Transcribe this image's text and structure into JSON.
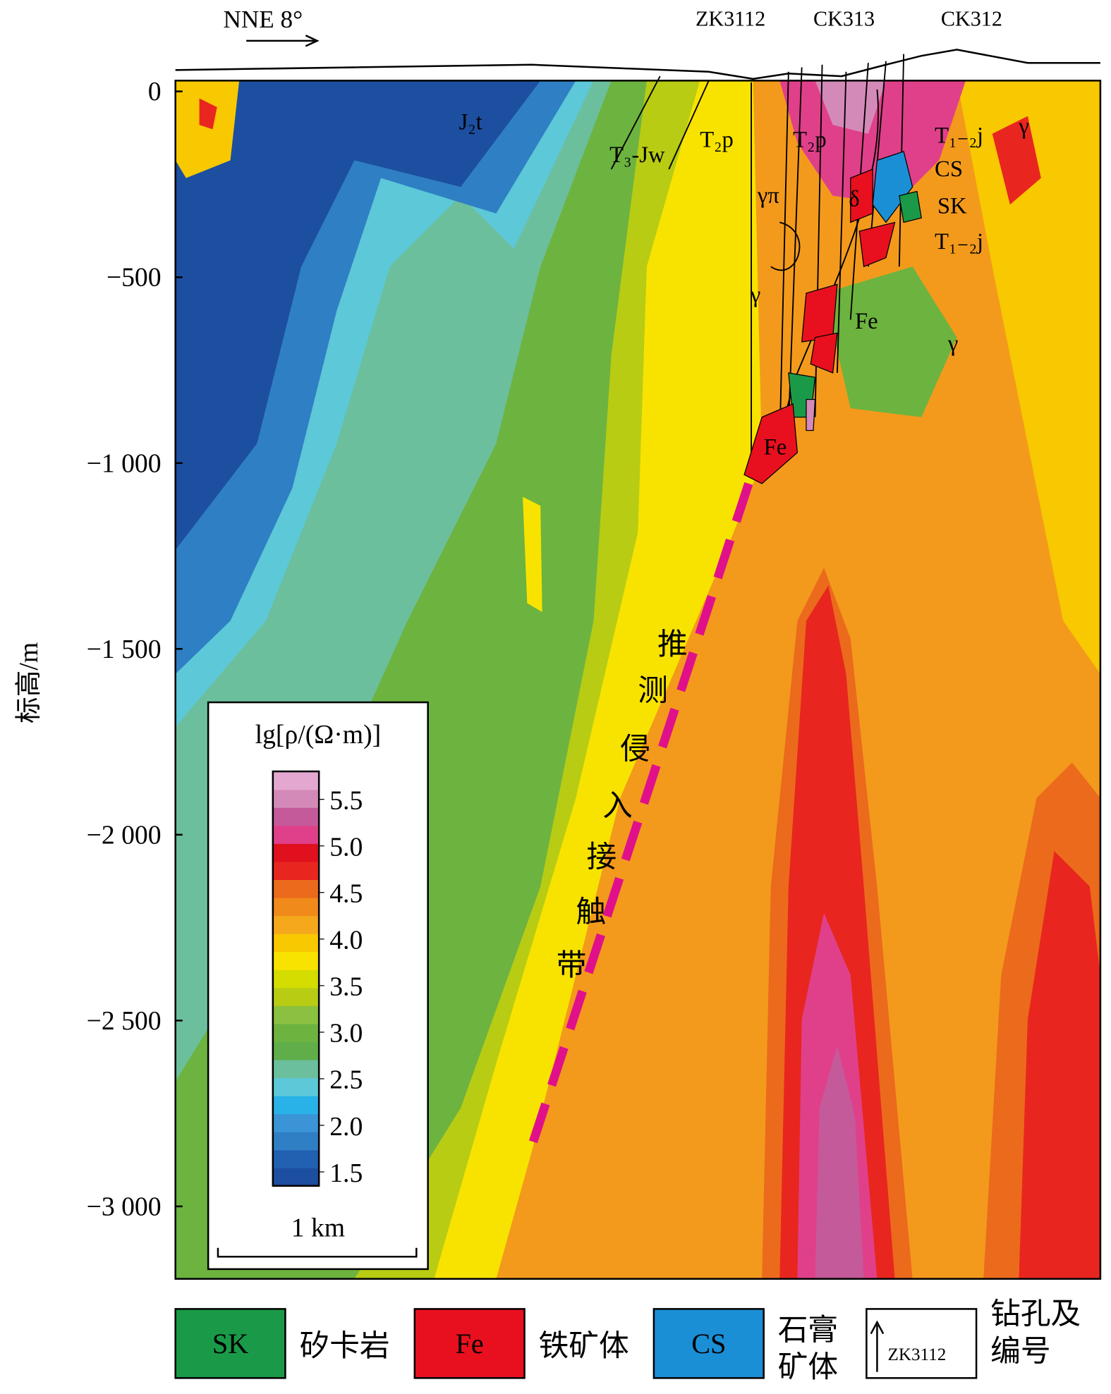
{
  "chart_data": {
    "type": "contour",
    "direction": "NNE 8°",
    "ylabel": "标高/m",
    "ylim": [
      -3195,
      29
    ],
    "yticks": [
      {
        "value": 0,
        "label": "0"
      },
      {
        "value": -500,
        "label": "−500"
      },
      {
        "value": -1000,
        "label": "−1 000"
      },
      {
        "value": -1500,
        "label": "−1 500"
      },
      {
        "value": -2000,
        "label": "−2 000"
      },
      {
        "value": -2500,
        "label": "−2 500"
      },
      {
        "value": -3000,
        "label": "−3 000"
      }
    ],
    "colorbar": {
      "title": "lg[ρ/(Ω·m)]",
      "clim": [
        1.35,
        5.8
      ],
      "ticks": [
        1.5,
        2.0,
        2.5,
        3.0,
        3.5,
        4.0,
        4.5,
        5.0,
        5.5
      ],
      "tick_labels": [
        "1.5",
        "2.0",
        "2.5",
        "3.0",
        "3.5",
        "4.0",
        "4.5",
        "5.0",
        "5.5"
      ],
      "colors": [
        "#1d4fa0",
        "#2260b2",
        "#2f7fc4",
        "#3a94d6",
        "#28b2e8",
        "#5cc8d8",
        "#6cbf9c",
        "#5fae4a",
        "#6db33f",
        "#8cc040",
        "#b8cc14",
        "#d4dc00",
        "#f8e300",
        "#f8c800",
        "#f5a81c",
        "#f08a1a",
        "#ec6a1c",
        "#e8261f",
        "#e0101e",
        "#e0408a",
        "#c45a9a",
        "#d48ab8",
        "#e4a8d0"
      ]
    },
    "scale_bar": "1 km",
    "boreholes": [
      "ZK3112",
      "CK313",
      "CK312"
    ],
    "labels": {
      "j2t": "J₂t",
      "t3jw": "T₃-Jw",
      "t2p_a": "T₂p",
      "t2p_b": "T₂p",
      "t12j_a": "T₁₋₂j",
      "cs": "CS",
      "sk": "SK",
      "t12j_b": "T₁₋₂j",
      "gpi": "γπ",
      "g1": "γ",
      "g2": "γ",
      "g3": "γ",
      "delta": "δ",
      "fe1": "Fe",
      "fe2": "Fe"
    },
    "contact": [
      "推",
      "测",
      "侵",
      "入",
      "接",
      "触",
      "带"
    ],
    "legend": [
      {
        "code": "SK",
        "text": "矽卡岩",
        "color": "#1a9a48"
      },
      {
        "code": "Fe",
        "text": "铁矿体",
        "color": "#e8101e"
      },
      {
        "code": "CS",
        "text": "石膏矿体",
        "color": "#1b8fd6"
      },
      {
        "code": "ZK3112",
        "text": "钻孔及编号",
        "color": "#ffffff"
      }
    ]
  }
}
